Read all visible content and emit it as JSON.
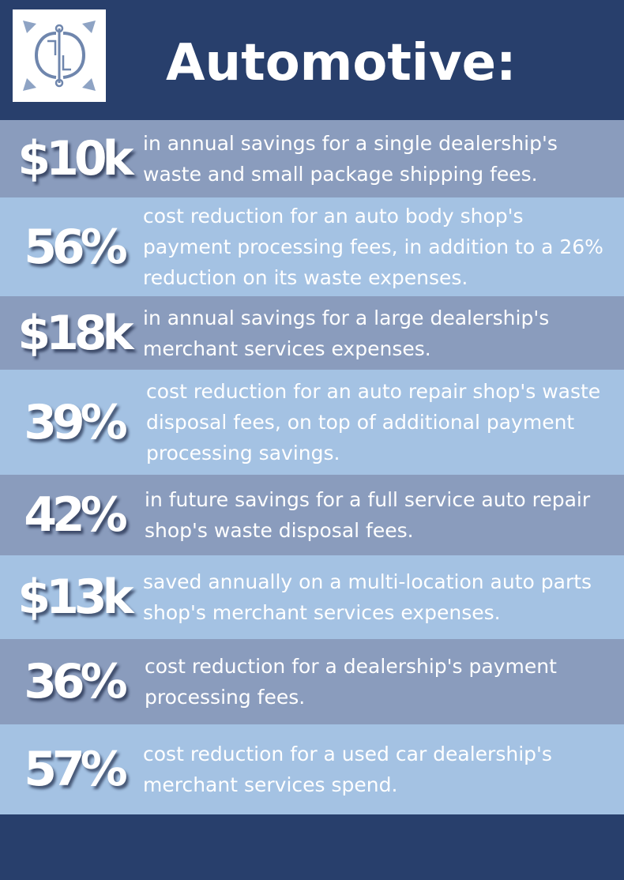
{
  "header": {
    "title": "Automotive:"
  },
  "stats": [
    {
      "value": "$10k",
      "text": "in annual savings for a single dealership's waste and small package shipping fees."
    },
    {
      "value": "56%",
      "text": "cost reduction for an auto body shop's payment processing fees, in addition to a 26% reduction on its waste expenses."
    },
    {
      "value": "$18k",
      "text": "in annual savings for a large dealership's merchant services expenses."
    },
    {
      "value": "39%",
      "text": "cost reduction for an auto repair shop's waste disposal fees, on top of additional payment processing savings."
    },
    {
      "value": "42%",
      "text": "in future savings for a full service auto repair shop's waste disposal fees."
    },
    {
      "value": "$13k",
      "text": "saved annually on a multi-location auto parts shop's merchant services expenses."
    },
    {
      "value": "36%",
      "text": "cost reduction for a dealership's payment processing fees."
    },
    {
      "value": "57%",
      "text": "cost reduction for a used car dealership's merchant services spend."
    }
  ],
  "colors": {
    "navy": "#283f6c",
    "row_dark": "#8a9cbd",
    "row_light": "#a4c2e3",
    "text": "#ffffff"
  }
}
